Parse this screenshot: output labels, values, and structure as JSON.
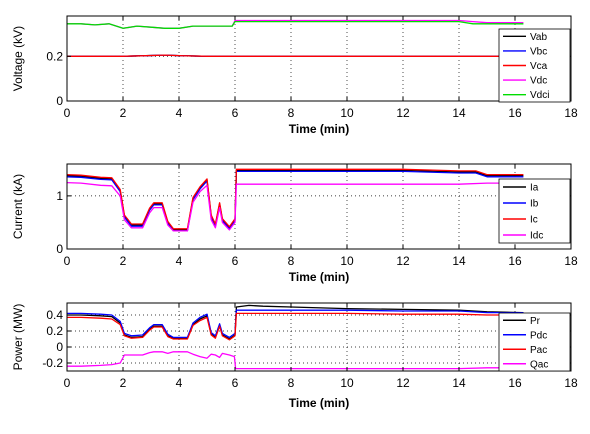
{
  "chart_data": [
    {
      "type": "line",
      "xlabel": "Time (min)",
      "ylabel": "Voltage (kV)",
      "xlim": [
        0,
        18
      ],
      "ylim": [
        0,
        0.38
      ],
      "xticks": [
        0,
        2,
        4,
        6,
        8,
        10,
        12,
        14,
        16,
        18
      ],
      "yticks": [
        0,
        0.2
      ],
      "grid": true,
      "legend_position": "bottom-right",
      "series": [
        {
          "name": "Vab",
          "color": "#000000",
          "x": [
            0,
            2,
            3.5,
            4,
            5,
            6,
            8,
            10,
            12,
            14,
            16.3
          ],
          "y": [
            0.2,
            0.2,
            0.205,
            0.203,
            0.2,
            0.2,
            0.2,
            0.2,
            0.2,
            0.2,
            0.2
          ]
        },
        {
          "name": "Vbc",
          "color": "#0000ff",
          "x": [
            0,
            2,
            3.5,
            4,
            5,
            6,
            8,
            10,
            12,
            14,
            16.3
          ],
          "y": [
            0.2,
            0.2,
            0.205,
            0.203,
            0.2,
            0.2,
            0.2,
            0.2,
            0.2,
            0.2,
            0.2
          ]
        },
        {
          "name": "Vca",
          "color": "#ff0000",
          "x": [
            0,
            2,
            3.5,
            4,
            5,
            6,
            8,
            10,
            12,
            14,
            16.3
          ],
          "y": [
            0.2,
            0.2,
            0.205,
            0.203,
            0.2,
            0.2,
            0.2,
            0.2,
            0.2,
            0.2,
            0.2
          ]
        },
        {
          "name": "Vdc",
          "color": "#ff00ff",
          "x": [
            0,
            0.5,
            1,
            1.5,
            2,
            2.5,
            3,
            3.5,
            4,
            4.5,
            5,
            5.5,
            5.9,
            6,
            8,
            10,
            12,
            14,
            14.5,
            15,
            16.3
          ],
          "y": [
            0.345,
            0.345,
            0.34,
            0.345,
            0.325,
            0.335,
            0.33,
            0.325,
            0.325,
            0.335,
            0.335,
            0.335,
            0.335,
            0.36,
            0.36,
            0.36,
            0.36,
            0.36,
            0.355,
            0.35,
            0.35
          ]
        },
        {
          "name": "Vdci",
          "color": "#00dd00",
          "x": [
            0,
            0.5,
            1,
            1.5,
            2,
            2.5,
            3,
            3.5,
            4,
            4.5,
            5,
            5.5,
            5.9,
            6,
            8,
            10,
            12,
            13.5,
            14,
            14.5,
            15,
            16.3
          ],
          "y": [
            0.345,
            0.345,
            0.34,
            0.345,
            0.325,
            0.335,
            0.33,
            0.325,
            0.325,
            0.335,
            0.335,
            0.335,
            0.335,
            0.355,
            0.355,
            0.355,
            0.355,
            0.355,
            0.355,
            0.345,
            0.345,
            0.345
          ]
        }
      ]
    },
    {
      "type": "line",
      "xlabel": "Time (min)",
      "ylabel": "Current (kA)",
      "xlim": [
        0,
        18
      ],
      "ylim": [
        0,
        1.6
      ],
      "xticks": [
        0,
        2,
        4,
        6,
        8,
        10,
        12,
        14,
        16,
        18
      ],
      "yticks": [
        0,
        1
      ],
      "grid": true,
      "legend_position": "bottom-right",
      "series": [
        {
          "name": "Ia",
          "color": "#000000",
          "x": [
            0,
            0.5,
            1.2,
            1.6,
            1.9,
            2.05,
            2.3,
            2.7,
            2.95,
            3.1,
            3.4,
            3.6,
            3.8,
            4.3,
            4.5,
            4.75,
            5.0,
            5.15,
            5.3,
            5.45,
            5.55,
            5.8,
            6.0,
            6.05,
            8,
            10,
            12,
            14,
            14.6,
            15,
            16.3
          ],
          "y": [
            1.38,
            1.37,
            1.33,
            1.32,
            1.1,
            0.62,
            0.45,
            0.45,
            0.75,
            0.85,
            0.85,
            0.5,
            0.36,
            0.36,
            0.95,
            1.15,
            1.3,
            0.62,
            0.45,
            0.85,
            0.55,
            0.4,
            0.55,
            1.48,
            1.48,
            1.48,
            1.48,
            1.45,
            1.45,
            1.38,
            1.38
          ]
        },
        {
          "name": "Ib",
          "color": "#0000ff",
          "x": [
            0,
            0.5,
            1.2,
            1.6,
            1.9,
            2.05,
            2.3,
            2.7,
            2.95,
            3.1,
            3.4,
            3.6,
            3.8,
            4.3,
            4.5,
            4.75,
            5.0,
            5.15,
            5.3,
            5.45,
            5.55,
            5.8,
            6.0,
            6.05,
            8,
            10,
            12,
            14,
            14.6,
            15,
            16.3
          ],
          "y": [
            1.36,
            1.35,
            1.31,
            1.3,
            1.08,
            0.6,
            0.43,
            0.43,
            0.73,
            0.83,
            0.83,
            0.48,
            0.34,
            0.34,
            0.93,
            1.13,
            1.28,
            0.6,
            0.43,
            0.83,
            0.53,
            0.38,
            0.53,
            1.46,
            1.46,
            1.46,
            1.46,
            1.43,
            1.43,
            1.36,
            1.36
          ]
        },
        {
          "name": "Ic",
          "color": "#ff0000",
          "x": [
            0,
            0.5,
            1.2,
            1.6,
            1.9,
            2.05,
            2.3,
            2.7,
            2.95,
            3.1,
            3.4,
            3.6,
            3.8,
            4.3,
            4.5,
            4.75,
            5.0,
            5.15,
            5.3,
            5.45,
            5.55,
            5.8,
            6.0,
            6.05,
            8,
            10,
            12,
            14,
            14.6,
            15,
            16.3
          ],
          "y": [
            1.4,
            1.39,
            1.35,
            1.34,
            1.12,
            0.64,
            0.47,
            0.47,
            0.77,
            0.87,
            0.87,
            0.52,
            0.38,
            0.38,
            0.97,
            1.17,
            1.32,
            0.64,
            0.47,
            0.87,
            0.57,
            0.42,
            0.57,
            1.5,
            1.5,
            1.5,
            1.5,
            1.47,
            1.47,
            1.4,
            1.4
          ]
        },
        {
          "name": "Idc",
          "color": "#ff00ff",
          "x": [
            0,
            0.5,
            1.2,
            1.6,
            1.9,
            2.05,
            2.3,
            2.7,
            2.95,
            3.1,
            3.4,
            3.6,
            3.8,
            4.3,
            4.5,
            4.75,
            5.0,
            5.15,
            5.3,
            5.45,
            5.55,
            5.8,
            6.0,
            6.05,
            8,
            10,
            12,
            14,
            15,
            16.3
          ],
          "y": [
            1.25,
            1.24,
            1.2,
            1.19,
            1.0,
            0.55,
            0.4,
            0.4,
            0.68,
            0.78,
            0.78,
            0.45,
            0.34,
            0.34,
            0.88,
            1.08,
            1.2,
            0.55,
            0.4,
            0.78,
            0.5,
            0.36,
            0.5,
            1.22,
            1.22,
            1.22,
            1.22,
            1.22,
            1.24,
            1.24
          ]
        }
      ]
    },
    {
      "type": "line",
      "xlabel": "Time (min)",
      "ylabel": "Power (MW)",
      "xlim": [
        0,
        18
      ],
      "ylim": [
        -0.3,
        0.55
      ],
      "xticks": [
        0,
        2,
        4,
        6,
        8,
        10,
        12,
        14,
        16,
        18
      ],
      "yticks": [
        -0.2,
        0,
        0.2,
        0.4
      ],
      "grid": true,
      "legend_position": "bottom-right",
      "series": [
        {
          "name": "Pr",
          "color": "#000000",
          "x": [
            0,
            0.5,
            1.2,
            1.6,
            1.9,
            2.05,
            2.3,
            2.7,
            2.95,
            3.1,
            3.4,
            3.6,
            3.8,
            4.3,
            4.5,
            4.75,
            5.0,
            5.15,
            5.3,
            5.45,
            5.55,
            5.8,
            6.0,
            6.05,
            6.5,
            7,
            8,
            10,
            12,
            14,
            15,
            16.3
          ],
          "y": [
            0.4,
            0.4,
            0.39,
            0.38,
            0.3,
            0.15,
            0.12,
            0.13,
            0.22,
            0.26,
            0.26,
            0.14,
            0.11,
            0.11,
            0.28,
            0.35,
            0.39,
            0.16,
            0.12,
            0.27,
            0.15,
            0.1,
            0.15,
            0.5,
            0.52,
            0.51,
            0.5,
            0.48,
            0.47,
            0.46,
            0.44,
            0.43
          ]
        },
        {
          "name": "Pdc",
          "color": "#0000ff",
          "x": [
            0,
            0.5,
            1.2,
            1.6,
            1.9,
            2.05,
            2.3,
            2.7,
            2.95,
            3.1,
            3.4,
            3.6,
            3.8,
            4.3,
            4.5,
            4.75,
            5.0,
            5.15,
            5.3,
            5.45,
            5.55,
            5.8,
            6.0,
            6.05,
            8,
            10,
            12,
            14,
            15,
            16.3
          ],
          "y": [
            0.42,
            0.42,
            0.41,
            0.4,
            0.32,
            0.17,
            0.14,
            0.15,
            0.24,
            0.28,
            0.28,
            0.16,
            0.12,
            0.12,
            0.3,
            0.37,
            0.41,
            0.18,
            0.14,
            0.29,
            0.17,
            0.12,
            0.17,
            0.46,
            0.46,
            0.46,
            0.45,
            0.45,
            0.43,
            0.43
          ]
        },
        {
          "name": "Pac",
          "color": "#ff0000",
          "x": [
            0,
            0.5,
            1.2,
            1.6,
            1.9,
            2.05,
            2.3,
            2.7,
            2.95,
            3.1,
            3.4,
            3.6,
            3.8,
            4.3,
            4.5,
            4.75,
            5.0,
            5.15,
            5.3,
            5.45,
            5.55,
            5.8,
            6.0,
            6.05,
            8,
            10,
            12,
            14,
            15,
            16.3
          ],
          "y": [
            0.37,
            0.37,
            0.36,
            0.35,
            0.28,
            0.14,
            0.11,
            0.12,
            0.21,
            0.25,
            0.25,
            0.13,
            0.1,
            0.1,
            0.27,
            0.33,
            0.37,
            0.15,
            0.11,
            0.26,
            0.14,
            0.09,
            0.14,
            0.42,
            0.42,
            0.42,
            0.41,
            0.41,
            0.4,
            0.4
          ]
        },
        {
          "name": "Qac",
          "color": "#ff00ff",
          "x": [
            0,
            0.5,
            1.2,
            1.6,
            1.9,
            2.05,
            2.3,
            2.7,
            2.95,
            3.1,
            3.4,
            3.6,
            3.8,
            4.3,
            4.5,
            4.75,
            5.0,
            5.15,
            5.3,
            5.45,
            5.55,
            5.8,
            5.98,
            6.02,
            8,
            10,
            12,
            14,
            15,
            16.3
          ],
          "y": [
            -0.24,
            -0.24,
            -0.23,
            -0.22,
            -0.2,
            -0.1,
            -0.1,
            -0.1,
            -0.07,
            -0.06,
            -0.06,
            -0.08,
            -0.06,
            -0.06,
            -0.09,
            -0.12,
            -0.14,
            -0.09,
            -0.1,
            -0.13,
            -0.08,
            -0.1,
            -0.12,
            -0.27,
            -0.27,
            -0.27,
            -0.27,
            -0.27,
            -0.26,
            -0.26
          ]
        }
      ]
    }
  ]
}
